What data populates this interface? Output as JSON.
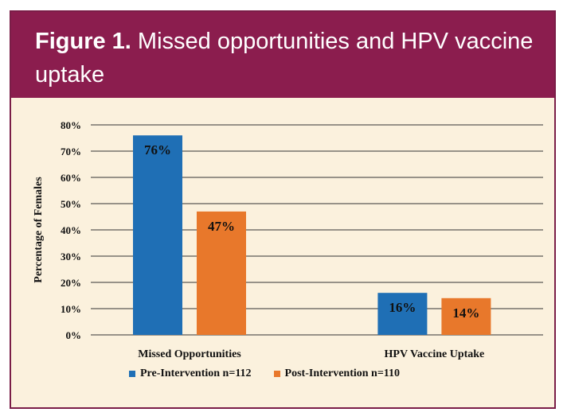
{
  "figure": {
    "label": "Figure 1.",
    "title": "Missed opportunities and HPV vaccine uptake"
  },
  "colors": {
    "header_bg": "#8b1d4e",
    "panel_bg": "#fbf1dd",
    "pre": "#1f6fb5",
    "post": "#e8782b"
  },
  "chart_data": {
    "type": "bar",
    "title": "",
    "ylabel": "Percentage of Females",
    "xlabel": "",
    "ylim": [
      0,
      80
    ],
    "yticks": [
      "0%",
      "10%",
      "20%",
      "30%",
      "40%",
      "50%",
      "60%",
      "70%",
      "80%"
    ],
    "grid": true,
    "legend_position": "bottom",
    "categories": [
      "Missed Opportunities",
      "HPV Vaccine Uptake"
    ],
    "series": [
      {
        "name": "Pre-Intervention n=112",
        "values": [
          76,
          16
        ],
        "labels": [
          "76%",
          "16%"
        ],
        "color": "#1f6fb5"
      },
      {
        "name": "Post-Intervention n=110",
        "values": [
          47,
          14
        ],
        "labels": [
          "47%",
          "14%"
        ],
        "color": "#e8782b"
      }
    ]
  }
}
